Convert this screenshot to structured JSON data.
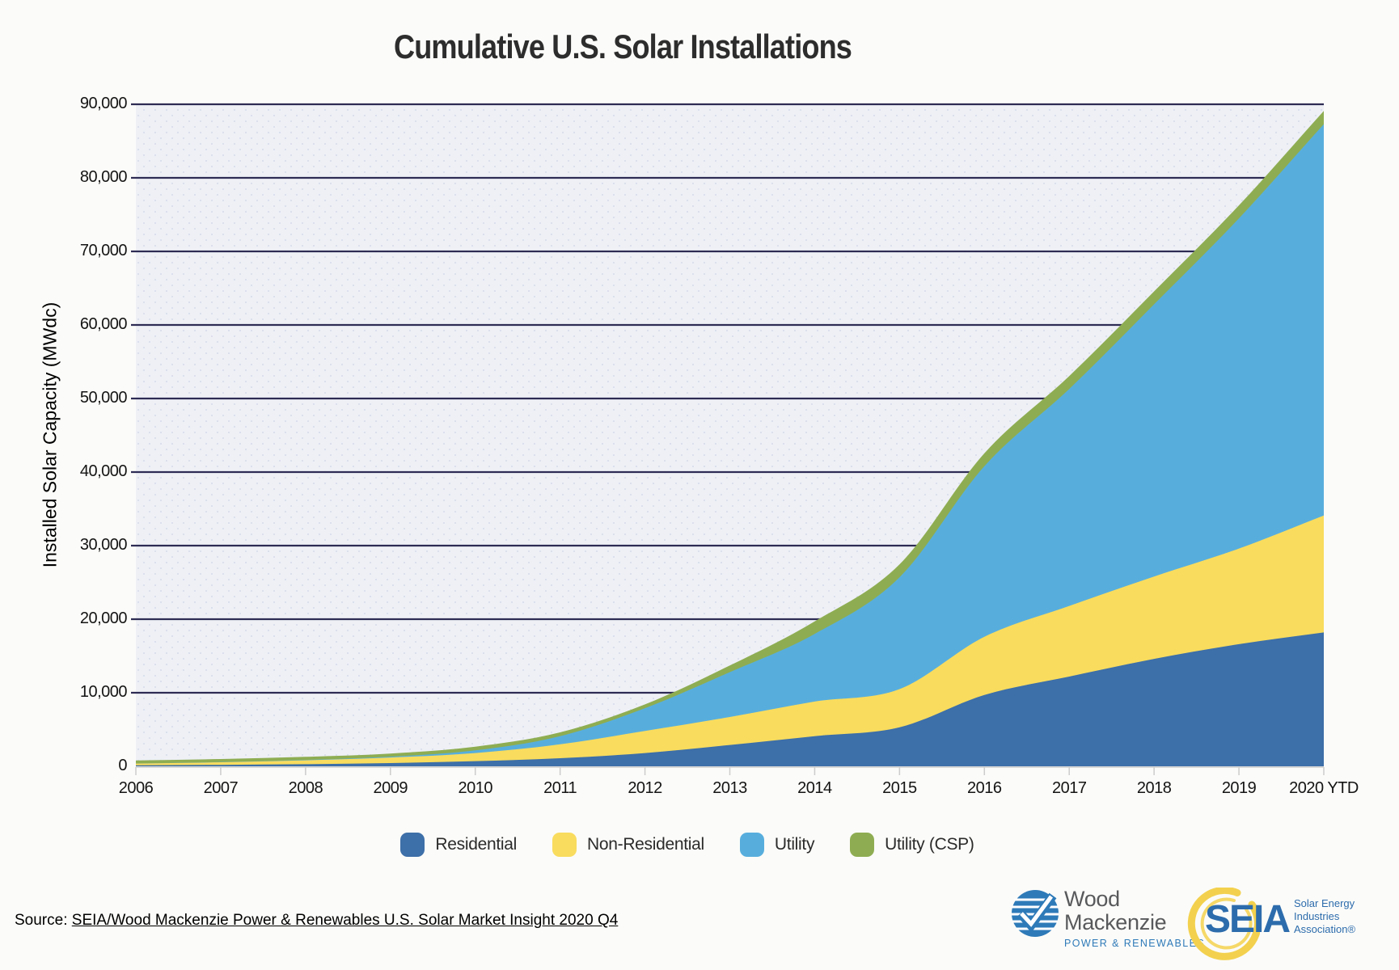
{
  "title": "Cumulative U.S. Solar Installations",
  "y_axis_title": "Installed Solar Capacity (MWdc)",
  "source": {
    "prefix": "Source: ",
    "link_text": "SEIA/Wood Mackenzie Power & Renewables U.S. Solar Market Insight 2020 Q4"
  },
  "chart_data": {
    "type": "area",
    "stacked": true,
    "title": "Cumulative U.S. Solar Installations",
    "xlabel": "",
    "ylabel": "Installed Solar Capacity (MWdc)",
    "ylim": [
      0,
      90000
    ],
    "y_tick_step": 10000,
    "grid": true,
    "legend_position": "bottom",
    "categories": [
      "2006",
      "2007",
      "2008",
      "2009",
      "2010",
      "2011",
      "2012",
      "2013",
      "2014",
      "2015",
      "2016",
      "2017",
      "2018",
      "2019",
      "2020 YTD"
    ],
    "y_tick_labels": [
      "0",
      "10,000",
      "20,000",
      "30,000",
      "40,000",
      "50,000",
      "60,000",
      "70,000",
      "80,000",
      "90,000"
    ],
    "series": [
      {
        "name": "Residential",
        "color": "#3d6fa8",
        "values": [
          130,
          200,
          290,
          440,
          700,
          1100,
          1800,
          2900,
          4100,
          5300,
          9700,
          12200,
          14600,
          16600,
          18200
        ]
      },
      {
        "name": "Non-Residential",
        "color": "#f9dc5e",
        "values": [
          240,
          350,
          520,
          760,
          1100,
          1900,
          3000,
          3800,
          4700,
          5200,
          7900,
          9600,
          11200,
          13000,
          15900
        ]
      },
      {
        "name": "Utility",
        "color": "#57aedd",
        "values": [
          10,
          20,
          60,
          110,
          360,
          1100,
          3100,
          6100,
          9200,
          15200,
          23200,
          29500,
          37000,
          44900,
          53200
        ]
      },
      {
        "name": "Utility (CSP)",
        "color": "#8ead52",
        "values": [
          410,
          420,
          420,
          430,
          510,
          520,
          520,
          900,
          1700,
          1760,
          1760,
          1760,
          1760,
          1760,
          1800
        ]
      }
    ]
  },
  "colors": {
    "grid": "#2e2c54",
    "plot_bg": "#eef0f6",
    "plot_dots": "#dadeeb",
    "axis": "#cccccc",
    "page_bg": "#fbfbf9"
  },
  "logos": {
    "wm_name_line1": "Wood",
    "wm_name_line2": "Mackenzie",
    "wm_sub": "POWER & RENEWABLES",
    "seia_acronym": "SEIA",
    "seia_sub_line1": "Solar Energy",
    "seia_sub_line2": "Industries",
    "seia_sub_line3": "Association®"
  }
}
